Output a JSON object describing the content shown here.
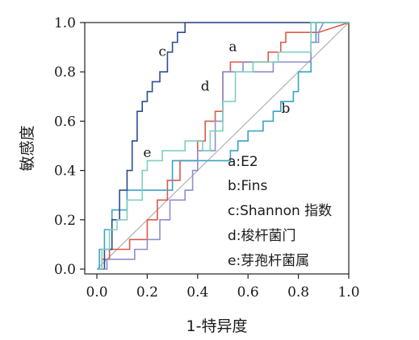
{
  "chart_data": {
    "type": "line",
    "xlabel": "1-特异度",
    "ylabel": "敏感度",
    "xlim": [
      0,
      1
    ],
    "ylim": [
      0,
      1
    ],
    "xticks": [
      "0.0",
      "0.2",
      "0.4",
      "0.6",
      "0.8",
      "1.0"
    ],
    "yticks": [
      "0.0",
      "0.2",
      "0.4",
      "0.6",
      "0.8",
      "1.0"
    ],
    "grid": false,
    "legend_position": "bottom-right",
    "legend": [
      "a:E2",
      "b:Fins",
      "c:Shannon 指数",
      "d:梭杆菌门",
      "e:芽孢杆菌属"
    ],
    "series": [
      {
        "name": "a",
        "color": "#e0574a",
        "x": [
          0,
          0.02,
          0.02,
          0.05,
          0.05,
          0.13,
          0.13,
          0.2,
          0.2,
          0.24,
          0.24,
          0.28,
          0.28,
          0.33,
          0.33,
          0.4,
          0.4,
          0.43,
          0.43,
          0.47,
          0.47,
          0.5,
          0.5,
          0.53,
          0.53,
          0.68,
          0.68,
          0.73,
          0.73,
          0.75,
          0.75,
          0.88,
          1.0
        ],
        "y": [
          0,
          0,
          0.04,
          0.04,
          0.08,
          0.08,
          0.12,
          0.12,
          0.2,
          0.2,
          0.28,
          0.28,
          0.36,
          0.36,
          0.44,
          0.44,
          0.52,
          0.52,
          0.6,
          0.6,
          0.64,
          0.64,
          0.8,
          0.8,
          0.84,
          0.84,
          0.88,
          0.88,
          0.92,
          0.92,
          0.96,
          0.96,
          1.0
        ]
      },
      {
        "name": "b",
        "color": "#3aa3c6",
        "x": [
          0,
          0.01,
          0.01,
          0.03,
          0.03,
          0.06,
          0.06,
          0.12,
          0.12,
          0.3,
          0.3,
          0.53,
          0.53,
          0.56,
          0.56,
          0.6,
          0.6,
          0.66,
          0.66,
          0.7,
          0.7,
          0.73,
          0.73,
          0.78,
          0.78,
          0.8,
          0.8,
          0.85,
          0.85,
          0.87,
          0.87,
          1.0
        ],
        "y": [
          0,
          0,
          0.08,
          0.08,
          0.16,
          0.16,
          0.24,
          0.24,
          0.32,
          0.32,
          0.44,
          0.44,
          0.48,
          0.48,
          0.52,
          0.52,
          0.56,
          0.56,
          0.6,
          0.6,
          0.64,
          0.64,
          0.68,
          0.68,
          0.72,
          0.72,
          0.8,
          0.8,
          0.92,
          0.92,
          1.0,
          1.0
        ]
      },
      {
        "name": "c",
        "color": "#2e4c8f",
        "x": [
          0,
          0.03,
          0.03,
          0.06,
          0.06,
          0.09,
          0.09,
          0.12,
          0.12,
          0.14,
          0.14,
          0.16,
          0.16,
          0.18,
          0.18,
          0.2,
          0.2,
          0.22,
          0.22,
          0.25,
          0.25,
          0.28,
          0.28,
          0.3,
          0.3,
          0.32,
          0.32,
          0.35,
          0.35,
          0.88,
          1.0
        ],
        "y": [
          0,
          0,
          0.08,
          0.08,
          0.2,
          0.2,
          0.32,
          0.32,
          0.4,
          0.4,
          0.52,
          0.52,
          0.64,
          0.64,
          0.68,
          0.68,
          0.72,
          0.72,
          0.76,
          0.76,
          0.8,
          0.8,
          0.88,
          0.88,
          0.92,
          0.92,
          0.96,
          0.96,
          1.0,
          1.0,
          1.0
        ]
      },
      {
        "name": "d",
        "color": "#8e8ecf",
        "x": [
          0,
          0.04,
          0.04,
          0.15,
          0.15,
          0.2,
          0.2,
          0.25,
          0.25,
          0.29,
          0.29,
          0.35,
          0.35,
          0.38,
          0.38,
          0.4,
          0.4,
          0.47,
          0.47,
          0.5,
          0.5,
          0.58,
          0.58,
          0.62,
          0.62,
          0.7,
          0.7,
          0.85,
          0.85,
          0.88,
          0.88,
          0.9,
          1.0
        ],
        "y": [
          0,
          0,
          0.04,
          0.04,
          0.08,
          0.08,
          0.12,
          0.12,
          0.2,
          0.2,
          0.28,
          0.28,
          0.32,
          0.32,
          0.4,
          0.4,
          0.48,
          0.48,
          0.6,
          0.6,
          0.8,
          0.8,
          0.84,
          0.84,
          0.8,
          0.8,
          0.84,
          0.84,
          0.92,
          0.92,
          0.96,
          1.0,
          1.0
        ]
      },
      {
        "name": "e",
        "color": "#7fd0bf",
        "x": [
          0,
          0.02,
          0.02,
          0.05,
          0.05,
          0.08,
          0.08,
          0.12,
          0.12,
          0.18,
          0.18,
          0.2,
          0.2,
          0.26,
          0.26,
          0.35,
          0.35,
          0.42,
          0.42,
          0.45,
          0.45,
          0.5,
          0.5,
          0.55,
          0.55,
          0.62,
          0.62,
          0.72,
          0.72,
          0.85,
          0.85,
          1.0
        ],
        "y": [
          0,
          0,
          0.08,
          0.08,
          0.16,
          0.16,
          0.2,
          0.2,
          0.28,
          0.28,
          0.4,
          0.4,
          0.44,
          0.44,
          0.48,
          0.48,
          0.52,
          0.52,
          0.48,
          0.48,
          0.56,
          0.56,
          0.68,
          0.68,
          0.8,
          0.8,
          0.84,
          0.84,
          0.88,
          0.88,
          1.0,
          1.0
        ]
      }
    ],
    "reference_line": {
      "x": [
        0,
        1
      ],
      "y": [
        0,
        1
      ],
      "color": "#b0b0b0"
    },
    "annotations": [
      {
        "text": "a",
        "x": 0.54,
        "y": 0.9
      },
      {
        "text": "b",
        "x": 0.75,
        "y": 0.65
      },
      {
        "text": "c",
        "x": 0.26,
        "y": 0.88
      },
      {
        "text": "d",
        "x": 0.43,
        "y": 0.74
      },
      {
        "text": "e",
        "x": 0.2,
        "y": 0.47
      }
    ]
  }
}
